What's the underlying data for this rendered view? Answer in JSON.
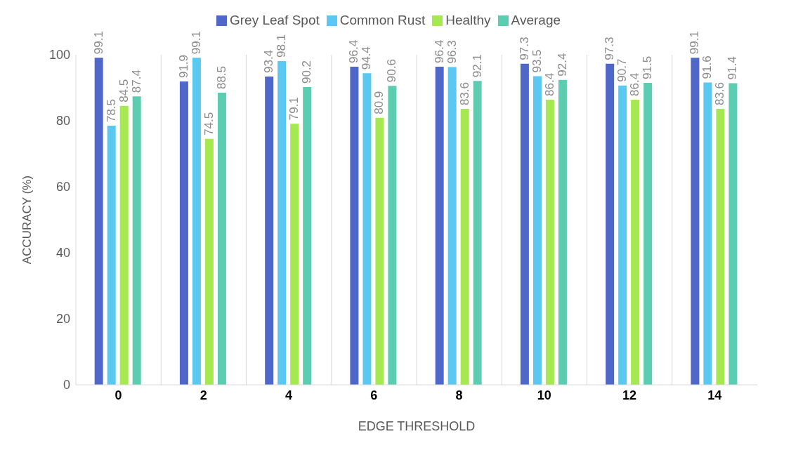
{
  "chart_data": {
    "type": "bar",
    "xlabel": "EDGE THRESHOLD",
    "ylabel": "ACCURACY (%)",
    "categories": [
      "0",
      "2",
      "4",
      "6",
      "8",
      "10",
      "12",
      "14"
    ],
    "series": [
      {
        "name": "Grey Leaf Spot",
        "color": "#4f67c8",
        "values": [
          99.1,
          91.9,
          93.4,
          96.4,
          96.4,
          97.3,
          97.3,
          99.1
        ]
      },
      {
        "name": "Common Rust",
        "color": "#5bc8f2",
        "values": [
          78.5,
          99.1,
          98.1,
          94.4,
          96.3,
          93.5,
          90.7,
          91.6
        ]
      },
      {
        "name": "Healthy",
        "color": "#a6e84f",
        "values": [
          84.5,
          74.5,
          79.1,
          80.9,
          83.6,
          86.4,
          86.4,
          83.6
        ]
      },
      {
        "name": "Average",
        "color": "#5ccdb0",
        "values": [
          87.4,
          88.5,
          90.2,
          90.6,
          92.1,
          92.4,
          91.5,
          91.4
        ]
      }
    ],
    "ylim": [
      0,
      100
    ],
    "yticks": [
      0,
      20,
      40,
      60,
      80,
      100
    ],
    "grid": "x",
    "legend": "top",
    "data_labels": true
  }
}
